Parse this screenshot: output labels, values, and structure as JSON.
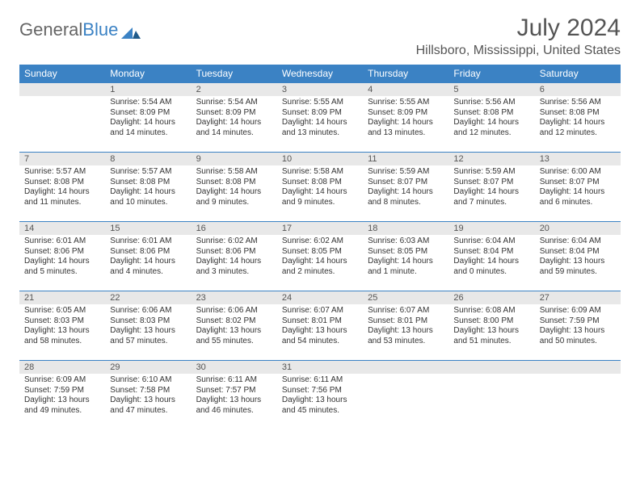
{
  "brand": {
    "part1": "General",
    "part2": "Blue"
  },
  "title": "July 2024",
  "location": "Hillsboro, Mississippi, United States",
  "colors": {
    "header_bg": "#3b82c4",
    "daynum_bg": "#e8e8e8",
    "text": "#333333",
    "title_text": "#555555"
  },
  "weekdays": [
    "Sunday",
    "Monday",
    "Tuesday",
    "Wednesday",
    "Thursday",
    "Friday",
    "Saturday"
  ],
  "first_weekday_index": 1,
  "days": [
    {
      "n": 1,
      "sunrise": "5:54 AM",
      "sunset": "8:09 PM",
      "daylight": "14 hours and 14 minutes."
    },
    {
      "n": 2,
      "sunrise": "5:54 AM",
      "sunset": "8:09 PM",
      "daylight": "14 hours and 14 minutes."
    },
    {
      "n": 3,
      "sunrise": "5:55 AM",
      "sunset": "8:09 PM",
      "daylight": "14 hours and 13 minutes."
    },
    {
      "n": 4,
      "sunrise": "5:55 AM",
      "sunset": "8:09 PM",
      "daylight": "14 hours and 13 minutes."
    },
    {
      "n": 5,
      "sunrise": "5:56 AM",
      "sunset": "8:08 PM",
      "daylight": "14 hours and 12 minutes."
    },
    {
      "n": 6,
      "sunrise": "5:56 AM",
      "sunset": "8:08 PM",
      "daylight": "14 hours and 12 minutes."
    },
    {
      "n": 7,
      "sunrise": "5:57 AM",
      "sunset": "8:08 PM",
      "daylight": "14 hours and 11 minutes."
    },
    {
      "n": 8,
      "sunrise": "5:57 AM",
      "sunset": "8:08 PM",
      "daylight": "14 hours and 10 minutes."
    },
    {
      "n": 9,
      "sunrise": "5:58 AM",
      "sunset": "8:08 PM",
      "daylight": "14 hours and 9 minutes."
    },
    {
      "n": 10,
      "sunrise": "5:58 AM",
      "sunset": "8:08 PM",
      "daylight": "14 hours and 9 minutes."
    },
    {
      "n": 11,
      "sunrise": "5:59 AM",
      "sunset": "8:07 PM",
      "daylight": "14 hours and 8 minutes."
    },
    {
      "n": 12,
      "sunrise": "5:59 AM",
      "sunset": "8:07 PM",
      "daylight": "14 hours and 7 minutes."
    },
    {
      "n": 13,
      "sunrise": "6:00 AM",
      "sunset": "8:07 PM",
      "daylight": "14 hours and 6 minutes."
    },
    {
      "n": 14,
      "sunrise": "6:01 AM",
      "sunset": "8:06 PM",
      "daylight": "14 hours and 5 minutes."
    },
    {
      "n": 15,
      "sunrise": "6:01 AM",
      "sunset": "8:06 PM",
      "daylight": "14 hours and 4 minutes."
    },
    {
      "n": 16,
      "sunrise": "6:02 AM",
      "sunset": "8:06 PM",
      "daylight": "14 hours and 3 minutes."
    },
    {
      "n": 17,
      "sunrise": "6:02 AM",
      "sunset": "8:05 PM",
      "daylight": "14 hours and 2 minutes."
    },
    {
      "n": 18,
      "sunrise": "6:03 AM",
      "sunset": "8:05 PM",
      "daylight": "14 hours and 1 minute."
    },
    {
      "n": 19,
      "sunrise": "6:04 AM",
      "sunset": "8:04 PM",
      "daylight": "14 hours and 0 minutes."
    },
    {
      "n": 20,
      "sunrise": "6:04 AM",
      "sunset": "8:04 PM",
      "daylight": "13 hours and 59 minutes."
    },
    {
      "n": 21,
      "sunrise": "6:05 AM",
      "sunset": "8:03 PM",
      "daylight": "13 hours and 58 minutes."
    },
    {
      "n": 22,
      "sunrise": "6:06 AM",
      "sunset": "8:03 PM",
      "daylight": "13 hours and 57 minutes."
    },
    {
      "n": 23,
      "sunrise": "6:06 AM",
      "sunset": "8:02 PM",
      "daylight": "13 hours and 55 minutes."
    },
    {
      "n": 24,
      "sunrise": "6:07 AM",
      "sunset": "8:01 PM",
      "daylight": "13 hours and 54 minutes."
    },
    {
      "n": 25,
      "sunrise": "6:07 AM",
      "sunset": "8:01 PM",
      "daylight": "13 hours and 53 minutes."
    },
    {
      "n": 26,
      "sunrise": "6:08 AM",
      "sunset": "8:00 PM",
      "daylight": "13 hours and 51 minutes."
    },
    {
      "n": 27,
      "sunrise": "6:09 AM",
      "sunset": "7:59 PM",
      "daylight": "13 hours and 50 minutes."
    },
    {
      "n": 28,
      "sunrise": "6:09 AM",
      "sunset": "7:59 PM",
      "daylight": "13 hours and 49 minutes."
    },
    {
      "n": 29,
      "sunrise": "6:10 AM",
      "sunset": "7:58 PM",
      "daylight": "13 hours and 47 minutes."
    },
    {
      "n": 30,
      "sunrise": "6:11 AM",
      "sunset": "7:57 PM",
      "daylight": "13 hours and 46 minutes."
    },
    {
      "n": 31,
      "sunrise": "6:11 AM",
      "sunset": "7:56 PM",
      "daylight": "13 hours and 45 minutes."
    }
  ],
  "labels": {
    "sunrise": "Sunrise:",
    "sunset": "Sunset:",
    "daylight": "Daylight:"
  }
}
